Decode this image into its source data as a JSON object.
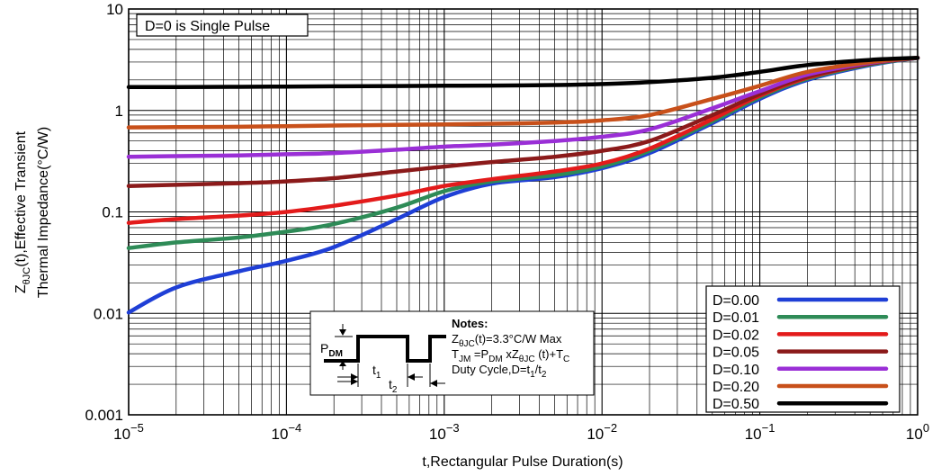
{
  "chart_data": {
    "type": "line",
    "title": "",
    "xlabel": "t,Rectangular Pulse Duration(s)",
    "ylabel": {
      "line1": "ZθJC(t),Effective Transient",
      "line2": "Thermal Impedance(°C/W)"
    },
    "xscale": "log",
    "yscale": "log",
    "xlim": [
      1e-05,
      1
    ],
    "ylim": [
      0.001,
      10
    ],
    "grid": true,
    "x_tick_labels": [
      {
        "base": "10",
        "exp": "−5"
      },
      {
        "base": "10",
        "exp": "−4"
      },
      {
        "base": "10",
        "exp": "−3"
      },
      {
        "base": "10",
        "exp": "−2"
      },
      {
        "base": "10",
        "exp": "−1"
      },
      {
        "base": "10",
        "exp": "0"
      }
    ],
    "y_tick_labels": [
      "10",
      "1",
      "0.1",
      "0.01",
      "0.001"
    ],
    "annotation": "D=0 is Single Pulse",
    "legend_position": "bottom-right",
    "series": [
      {
        "name": "D=0.00",
        "color": "#1f3fd6",
        "x": [
          1e-05,
          2e-05,
          5e-05,
          0.0001,
          0.0002,
          0.0005,
          0.001,
          0.002,
          0.005,
          0.01,
          0.02,
          0.05,
          0.1,
          0.2,
          0.5,
          1
        ],
        "y": [
          0.0102,
          0.018,
          0.026,
          0.033,
          0.045,
          0.085,
          0.14,
          0.19,
          0.22,
          0.27,
          0.38,
          0.75,
          1.3,
          2.0,
          2.8,
          3.3
        ]
      },
      {
        "name": "D=0.01",
        "color": "#2e8b57",
        "x": [
          1e-05,
          2e-05,
          5e-05,
          0.0001,
          0.0002,
          0.0005,
          0.001,
          0.002,
          0.005,
          0.01,
          0.02,
          0.05,
          0.1,
          0.2,
          0.5,
          1
        ],
        "y": [
          0.044,
          0.05,
          0.056,
          0.064,
          0.076,
          0.11,
          0.16,
          0.2,
          0.23,
          0.28,
          0.4,
          0.78,
          1.35,
          2.05,
          2.85,
          3.3
        ]
      },
      {
        "name": "D=0.02",
        "color": "#e31b1b",
        "x": [
          1e-05,
          2e-05,
          5e-05,
          0.0001,
          0.0002,
          0.0005,
          0.001,
          0.002,
          0.005,
          0.01,
          0.02,
          0.05,
          0.1,
          0.2,
          0.5,
          1
        ],
        "y": [
          0.078,
          0.085,
          0.092,
          0.1,
          0.115,
          0.145,
          0.18,
          0.21,
          0.25,
          0.3,
          0.42,
          0.82,
          1.4,
          2.1,
          2.9,
          3.3
        ]
      },
      {
        "name": "D=0.05",
        "color": "#8b1a1a",
        "x": [
          1e-05,
          2e-05,
          5e-05,
          0.0001,
          0.0002,
          0.0005,
          0.001,
          0.002,
          0.005,
          0.01,
          0.02,
          0.05,
          0.1,
          0.2,
          0.5,
          1
        ],
        "y": [
          0.18,
          0.185,
          0.192,
          0.2,
          0.215,
          0.25,
          0.28,
          0.31,
          0.35,
          0.4,
          0.5,
          0.9,
          1.45,
          2.15,
          2.9,
          3.3
        ]
      },
      {
        "name": "D=0.10",
        "color": "#9a2fd6",
        "x": [
          1e-05,
          2e-05,
          5e-05,
          0.0001,
          0.0002,
          0.0005,
          0.001,
          0.002,
          0.005,
          0.01,
          0.02,
          0.05,
          0.1,
          0.2,
          0.5,
          1
        ],
        "y": [
          0.35,
          0.355,
          0.36,
          0.37,
          0.38,
          0.41,
          0.44,
          0.46,
          0.5,
          0.55,
          0.65,
          1.05,
          1.55,
          2.25,
          2.95,
          3.3
        ]
      },
      {
        "name": "D=0.20",
        "color": "#c8501a",
        "x": [
          1e-05,
          2e-05,
          5e-05,
          0.0001,
          0.0002,
          0.0005,
          0.001,
          0.002,
          0.005,
          0.01,
          0.02,
          0.05,
          0.1,
          0.2,
          0.5,
          1
        ],
        "y": [
          0.68,
          0.685,
          0.69,
          0.7,
          0.71,
          0.72,
          0.73,
          0.74,
          0.76,
          0.8,
          0.9,
          1.3,
          1.75,
          2.4,
          3.0,
          3.3
        ]
      },
      {
        "name": "D=0.50",
        "color": "#000000",
        "x": [
          1e-05,
          2e-05,
          5e-05,
          0.0001,
          0.0002,
          0.0005,
          0.001,
          0.002,
          0.005,
          0.01,
          0.02,
          0.05,
          0.1,
          0.2,
          0.5,
          1
        ],
        "y": [
          1.7,
          1.7,
          1.71,
          1.72,
          1.73,
          1.74,
          1.75,
          1.76,
          1.78,
          1.82,
          1.9,
          2.1,
          2.4,
          2.8,
          3.15,
          3.3
        ]
      }
    ],
    "notes": {
      "heading": "Notes:",
      "line1": {
        "a": "Z",
        "a_sub": "θJC",
        "b": "(t)=3.3°C/W Max"
      },
      "line2": {
        "a": "T",
        "a_sub": "JM",
        "b": " =P",
        "b_sub": "DM",
        "c": " xZ",
        "c_sub": "θJC",
        "d": " (t)+T",
        "d_sub": "C"
      },
      "line3": {
        "a": "Duty Cycle,D=t",
        "a_sub": "1",
        "b": "/t",
        "b_sub": "2"
      }
    },
    "pulse_labels": {
      "pdm": "P",
      "pdm_sub": "DM",
      "t1": "t",
      "t1_sub": "1",
      "t2": "t",
      "t2_sub": "2"
    }
  }
}
